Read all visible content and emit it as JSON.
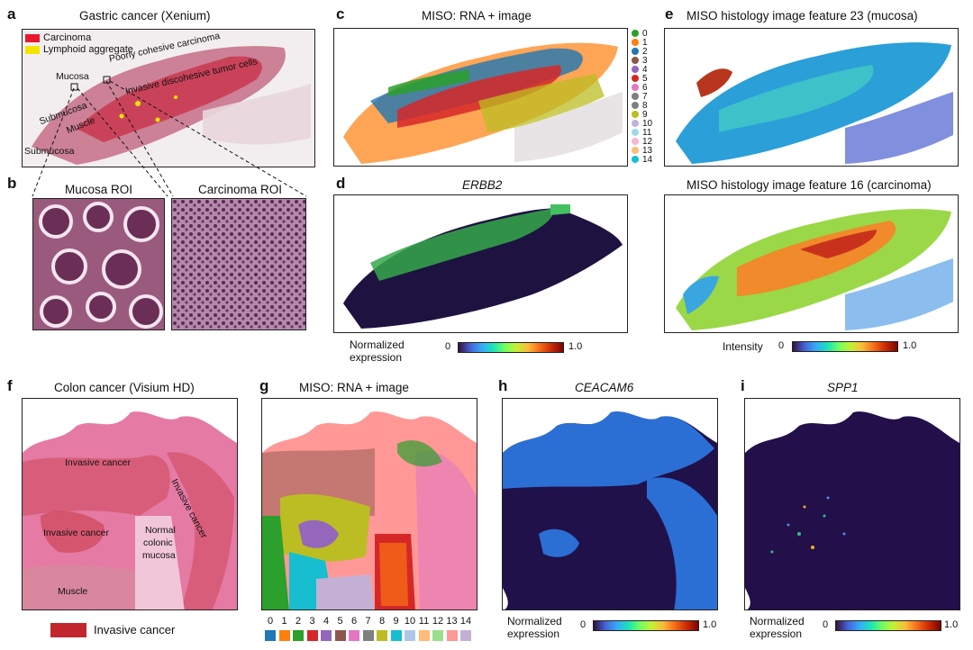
{
  "panels": {
    "a": {
      "label": "a",
      "title": "Gastric cancer (Xenium)",
      "legend": [
        {
          "name": "Carcinoma",
          "color": "#e8192c"
        },
        {
          "name": "Lymphoid aggregate",
          "color": "#f2e600"
        }
      ],
      "annotations": [
        "Mucosa",
        "Poorly cohesive carcinoma",
        "Invasive discohesive tumor cells",
        "Submucosa",
        "Muscle",
        "Submucosa"
      ]
    },
    "b": {
      "label": "b",
      "roi1": "Mucosa ROI",
      "roi2": "Carcinoma ROI"
    },
    "c": {
      "label": "c",
      "title": "MISO: RNA + image",
      "clusters": [
        "0",
        "1",
        "2",
        "3",
        "4",
        "5",
        "6",
        "7",
        "8",
        "9",
        "10",
        "11",
        "12",
        "13",
        "14"
      ]
    },
    "d": {
      "label": "d",
      "title": "ERBB2",
      "cbar_label1": "Normalized",
      "cbar_label2": "expression",
      "cbar_min": "0",
      "cbar_max": "1.0"
    },
    "e": {
      "label": "e",
      "title1": "MISO histology image feature 23 (mucosa)",
      "title2": "MISO histology image feature 16 (carcinoma)",
      "cbar_label": "Intensity",
      "cbar_min": "0",
      "cbar_max": "1.0"
    },
    "f": {
      "label": "f",
      "title": "Colon cancer (Visium HD)",
      "annotations": [
        "Invasive cancer",
        "Invasive cancer",
        "Invasive cancer",
        "Normal",
        "colonic",
        "mucosa",
        "Muscle"
      ],
      "legend": "Invasive cancer",
      "legend_color": "#c1272d"
    },
    "g": {
      "label": "g",
      "title": "MISO: RNA + image",
      "clusters": [
        "0",
        "1",
        "2",
        "3",
        "4",
        "5",
        "6",
        "7",
        "8",
        "9",
        "10",
        "11",
        "12",
        "13",
        "14"
      ]
    },
    "h": {
      "label": "h",
      "title": "CEACAM6",
      "cbar_label1": "Normalized",
      "cbar_label2": "expression",
      "cbar_min": "0",
      "cbar_max": "1.0"
    },
    "i": {
      "label": "i",
      "title": "SPP1",
      "cbar_label1": "Normalized",
      "cbar_label2": "expression",
      "cbar_min": "0",
      "cbar_max": "1.0"
    }
  },
  "cluster_colors": [
    "#2ca02c",
    "#ff7f0e",
    "#1f77b4",
    "#8c564b",
    "#9467bd",
    "#d62728",
    "#e377c2",
    "#7f7f7f",
    "#7f7f7f",
    "#bcbd22",
    "#c5b0d5",
    "#9edae5",
    "#f7b6d2",
    "#ffbb78",
    "#17becf"
  ],
  "g_swatch_colors": [
    "#1f77b4",
    "#ff7f0e",
    "#2ca02c",
    "#d62728",
    "#9467bd",
    "#8c564b",
    "#e377c2",
    "#7f7f7f",
    "#bcbd22",
    "#17becf",
    "#aec7e8",
    "#ffbb78",
    "#98df8a",
    "#ff9896",
    "#c5b0d5"
  ]
}
